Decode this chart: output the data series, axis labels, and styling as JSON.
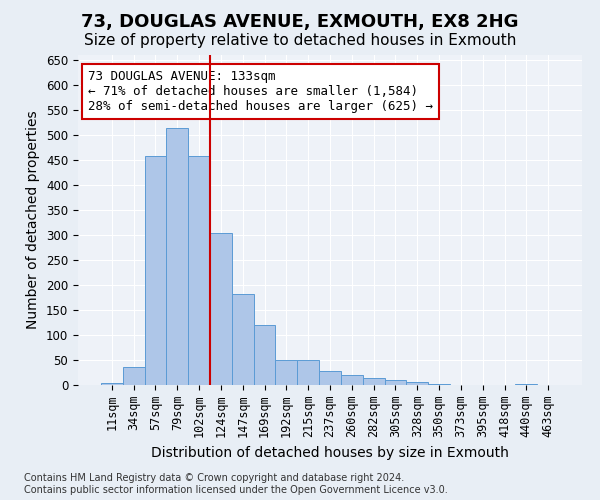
{
  "title_line1": "73, DOUGLAS AVENUE, EXMOUTH, EX8 2HG",
  "title_line2": "Size of property relative to detached houses in Exmouth",
  "xlabel": "Distribution of detached houses by size in Exmouth",
  "ylabel": "Number of detached properties",
  "footnote": "Contains HM Land Registry data © Crown copyright and database right 2024.\nContains public sector information licensed under the Open Government Licence v3.0.",
  "bin_labels": [
    "11sqm",
    "34sqm",
    "57sqm",
    "79sqm",
    "102sqm",
    "124sqm",
    "147sqm",
    "169sqm",
    "192sqm",
    "215sqm",
    "237sqm",
    "260sqm",
    "282sqm",
    "305sqm",
    "328sqm",
    "350sqm",
    "373sqm",
    "395sqm",
    "418sqm",
    "440sqm",
    "463sqm"
  ],
  "bar_values": [
    5,
    37,
    458,
    515,
    458,
    305,
    182,
    120,
    50,
    50,
    28,
    20,
    15,
    10,
    6,
    2,
    1,
    0,
    0,
    2,
    0
  ],
  "bar_color": "#aec6e8",
  "bar_edge_color": "#5b9bd5",
  "reference_line_x": 4.5,
  "reference_line_color": "#cc0000",
  "annotation_text": "73 DOUGLAS AVENUE: 133sqm\n← 71% of detached houses are smaller (1,584)\n28% of semi-detached houses are larger (625) →",
  "annotation_box_edge_color": "#cc0000",
  "ylim": [
    0,
    660
  ],
  "yticks": [
    0,
    50,
    100,
    150,
    200,
    250,
    300,
    350,
    400,
    450,
    500,
    550,
    600,
    650
  ],
  "background_color": "#e8eef5",
  "plot_background_color": "#eef2f8",
  "grid_color": "#ffffff",
  "title_fontsize": 13,
  "subtitle_fontsize": 11,
  "axis_label_fontsize": 10,
  "tick_fontsize": 8.5,
  "annotation_fontsize": 9,
  "footnote_fontsize": 7
}
